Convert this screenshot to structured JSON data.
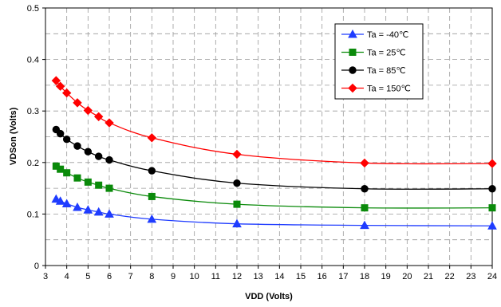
{
  "chart_data": {
    "type": "line",
    "title": "",
    "xlabel": "VDD (Volts)",
    "ylabel": "VDSon (Volts)",
    "xlim": [
      3,
      24
    ],
    "ylim": [
      0,
      0.5
    ],
    "x_ticks": [
      3,
      4,
      5,
      6,
      7,
      8,
      9,
      10,
      11,
      12,
      13,
      14,
      15,
      16,
      17,
      18,
      19,
      20,
      21,
      22,
      23,
      24
    ],
    "x_tick_labels": [
      "3",
      "4",
      "5",
      "6",
      "7",
      "8",
      "9",
      "10",
      "11",
      "12",
      "13",
      "14",
      "15",
      "16",
      "17",
      "18",
      "19",
      "20",
      "21",
      "22",
      "23",
      "24"
    ],
    "y_ticks": [
      0,
      0.1,
      0.2,
      0.3,
      0.4,
      0.5
    ],
    "y_tick_labels": [
      "0",
      "0.1",
      "0.2",
      "0.3",
      "0.4",
      "0.5"
    ],
    "y_minor_grid": [
      0.05,
      0.15,
      0.25,
      0.35,
      0.45
    ],
    "grid": true,
    "legend_position": "top-right",
    "x": [
      3.5,
      3.7,
      4,
      4.5,
      5,
      5.5,
      6,
      8,
      12,
      18,
      24
    ],
    "series": [
      {
        "name": "Ta = -40℃",
        "color": "#1f3cff",
        "marker": "triangle",
        "values": [
          0.129,
          0.125,
          0.12,
          0.113,
          0.108,
          0.104,
          0.1,
          0.09,
          0.081,
          0.078,
          0.077
        ]
      },
      {
        "name": "Ta = 25℃",
        "color": "#0a8a0a",
        "marker": "square",
        "values": [
          0.193,
          0.187,
          0.18,
          0.17,
          0.162,
          0.156,
          0.15,
          0.134,
          0.119,
          0.112,
          0.112
        ]
      },
      {
        "name": "Ta = 85℃",
        "color": "#000000",
        "marker": "circle",
        "values": [
          0.264,
          0.256,
          0.245,
          0.232,
          0.221,
          0.212,
          0.205,
          0.184,
          0.16,
          0.149,
          0.149
        ]
      },
      {
        "name": "Ta = 150℃",
        "color": "#ff0000",
        "marker": "diamond",
        "values": [
          0.359,
          0.348,
          0.335,
          0.316,
          0.301,
          0.289,
          0.277,
          0.248,
          0.216,
          0.199,
          0.198
        ]
      }
    ]
  }
}
